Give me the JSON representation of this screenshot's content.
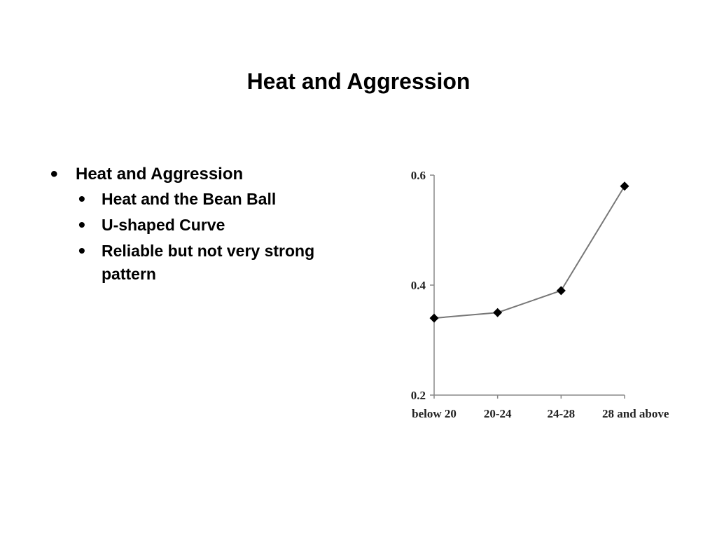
{
  "slide": {
    "title": "Heat and Aggression"
  },
  "bullets": {
    "main": "Heat and Aggression",
    "sub": [
      "Heat and the Bean Ball",
      "U-shaped Curve",
      "Reliable but not very strong pattern"
    ]
  },
  "chart_data": {
    "type": "line",
    "categories": [
      "below 20",
      "20-24",
      "24-28",
      "28 and above"
    ],
    "series": [
      {
        "values": [
          0.34,
          0.35,
          0.39,
          0.58
        ]
      }
    ],
    "yticks": [
      "0.2",
      "0.4",
      "0.6"
    ],
    "ylim": [
      0.2,
      0.6
    ],
    "title": "",
    "xlabel": "",
    "ylabel": "",
    "grid": false,
    "marker": "diamond",
    "line_color": "#777777",
    "marker_color": "#000000"
  }
}
